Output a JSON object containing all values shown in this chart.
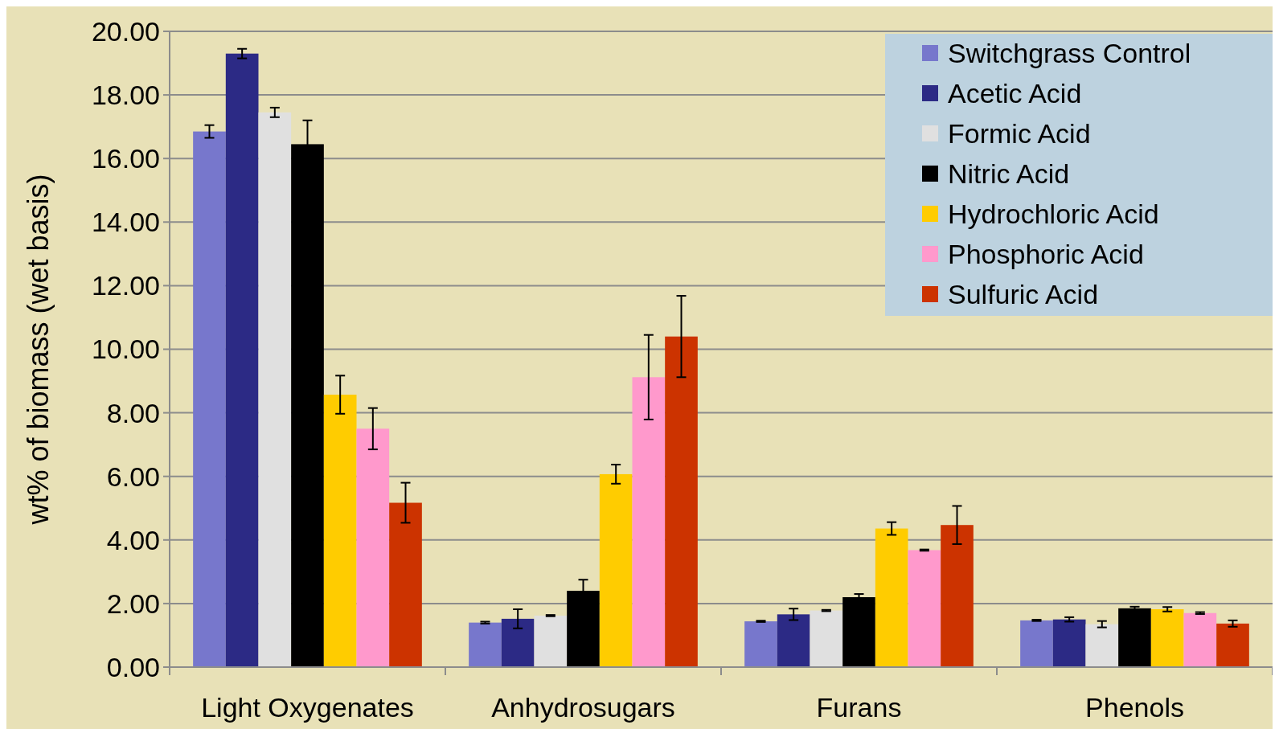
{
  "chart_data": {
    "type": "bar",
    "ylabel": "wt% of biomass (wet basis)",
    "categories": [
      "Light Oxygenates",
      "Anhydrosugars",
      "Furans",
      "Phenols"
    ],
    "ylim": [
      0,
      20
    ],
    "yticks": [
      {
        "value": 0,
        "label": "0.00"
      },
      {
        "value": 2,
        "label": "2.00"
      },
      {
        "value": 4,
        "label": "4.00"
      },
      {
        "value": 6,
        "label": "6.00"
      },
      {
        "value": 8,
        "label": "8.00"
      },
      {
        "value": 10,
        "label": "10.00"
      },
      {
        "value": 12,
        "label": "12.00"
      },
      {
        "value": 14,
        "label": "14.00"
      },
      {
        "value": 16,
        "label": "16.00"
      },
      {
        "value": 18,
        "label": "18.00"
      },
      {
        "value": 20,
        "label": "20.00"
      }
    ],
    "grid": "y",
    "legend": "top right",
    "series": [
      {
        "name": "Switchgrass Control",
        "color": "#7777cc",
        "values": [
          16.85,
          1.4,
          1.44,
          1.47
        ],
        "errors": [
          0.2,
          0.03,
          0.02,
          0.02
        ]
      },
      {
        "name": "Acetic Acid",
        "color": "#2c2a85",
        "values": [
          19.3,
          1.52,
          1.66,
          1.5
        ],
        "errors": [
          0.15,
          0.3,
          0.18,
          0.07
        ]
      },
      {
        "name": "Formic Acid",
        "color": "#e0e0e0",
        "values": [
          17.45,
          1.62,
          1.78,
          1.35
        ],
        "errors": [
          0.15,
          0.02,
          0.02,
          0.1
        ]
      },
      {
        "name": "Nitric Acid",
        "color": "#000000",
        "values": [
          16.45,
          2.4,
          2.2,
          1.85
        ],
        "errors": [
          0.75,
          0.35,
          0.1,
          0.05
        ]
      },
      {
        "name": "Hydrochloric Acid",
        "color": "#ffcc00",
        "values": [
          8.57,
          6.07,
          4.36,
          1.82
        ],
        "errors": [
          0.6,
          0.3,
          0.2,
          0.07
        ]
      },
      {
        "name": "Phosphoric Acid",
        "color": "#ff99cc",
        "values": [
          7.5,
          9.12,
          3.68,
          1.7
        ],
        "errors": [
          0.65,
          1.33,
          0.02,
          0.03
        ]
      },
      {
        "name": "Sulfuric Acid",
        "color": "#cc3300",
        "values": [
          5.17,
          10.4,
          4.47,
          1.37
        ],
        "errors": [
          0.63,
          1.28,
          0.6,
          0.1
        ]
      }
    ]
  }
}
